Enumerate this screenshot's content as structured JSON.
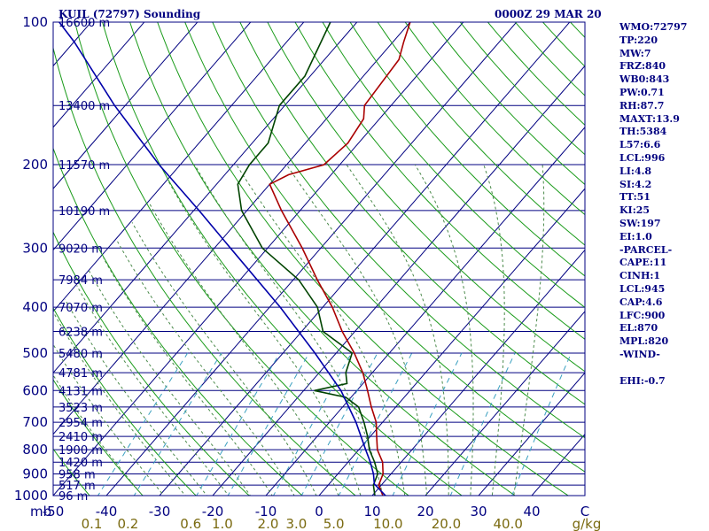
{
  "header": {
    "station": "KUIL (72797) Sounding",
    "time": "0000Z 29 MAR 20"
  },
  "stats": [
    "WMO:72797",
    "TP:220",
    "MW:7",
    "FRZ:840",
    "WB0:843",
    "PW:0.71",
    "RH:87.7",
    "MAXT:13.9",
    "TH:5384",
    "L57:6.6",
    "LCL:996",
    "LI:4.8",
    "SI:4.2",
    "TT:51",
    "KI:25",
    "SW:197",
    "EI:1.0",
    "-PARCEL-",
    "CAPE:11",
    "CINH:1",
    "LCL:945",
    "CAP:4.6",
    "LFC:900",
    "EL:870",
    "MPL:820",
    "-WIND-",
    "",
    "EHI:-0.7"
  ],
  "colors": {
    "frame": "#000080",
    "isobar": "#000080",
    "isotherm": "#000080",
    "dry_adiabat": "#1a9b1a",
    "moist_adiabat": "#4b8a4b",
    "mixing_ratio": "#3aa0c0",
    "temperature": "#aa0000",
    "dewpoint": "#004400",
    "parcel": "#0000aa"
  },
  "chart_data": {
    "type": "line",
    "title": "KUIL (72797) Sounding",
    "xlabel": "",
    "ylabel": "mb",
    "x_unit_label": "C",
    "mixing_unit_label": "g/kg",
    "p_range": [
      1000,
      100
    ],
    "t_range_at_1000mb": [
      -50,
      50
    ],
    "pressure_labels": [
      "100",
      "200",
      "300",
      "400",
      "500",
      "600",
      "700",
      "800",
      "900",
      "1000"
    ],
    "temp_ticks": [
      "-50",
      "-40",
      "-30",
      "-20",
      "-10",
      "0",
      "10",
      "20",
      "30",
      "40",
      "C"
    ],
    "mixing_ratio_ticks": [
      "0.1",
      "0.2",
      "0.6",
      "1.0",
      "2.0",
      "3.0",
      "5.0",
      "10.0",
      "20.0",
      "40.0"
    ],
    "height_labels": [
      {
        "p": 100,
        "label": "16600 m"
      },
      {
        "p": 150,
        "label": "13400 m"
      },
      {
        "p": 200,
        "label": "11570 m"
      },
      {
        "p": 250,
        "label": "10190 m"
      },
      {
        "p": 300,
        "label": "9020 m"
      },
      {
        "p": 350,
        "label": "7984 m"
      },
      {
        "p": 400,
        "label": "7070 m"
      },
      {
        "p": 450,
        "label": "6238 m"
      },
      {
        "p": 500,
        "label": "5480 m"
      },
      {
        "p": 550,
        "label": "4781 m"
      },
      {
        "p": 600,
        "label": "4131 m"
      },
      {
        "p": 650,
        "label": "3523 m"
      },
      {
        "p": 700,
        "label": "2954 m"
      },
      {
        "p": 750,
        "label": "2410 m"
      },
      {
        "p": 800,
        "label": "1900 m"
      },
      {
        "p": 850,
        "label": "1420 m"
      },
      {
        "p": 900,
        "label": "958 m"
      },
      {
        "p": 950,
        "label": "517 m"
      },
      {
        "p": 1000,
        "label": "96 m"
      }
    ],
    "series": [
      {
        "key": "temperature",
        "points": [
          [
            1000,
            12
          ],
          [
            950,
            9.5
          ],
          [
            900,
            8.5
          ],
          [
            850,
            6.5
          ],
          [
            800,
            3.5
          ],
          [
            750,
            1.2
          ],
          [
            700,
            -1.2
          ],
          [
            650,
            -4.6
          ],
          [
            600,
            -8
          ],
          [
            550,
            -11.8
          ],
          [
            500,
            -16.6
          ],
          [
            450,
            -22.4
          ],
          [
            400,
            -28.2
          ],
          [
            350,
            -35.5
          ],
          [
            300,
            -43.5
          ],
          [
            250,
            -53.5
          ],
          [
            220,
            -60
          ],
          [
            210,
            -58
          ],
          [
            200,
            -53
          ],
          [
            180,
            -52
          ],
          [
            160,
            -53
          ],
          [
            150,
            -55
          ],
          [
            120,
            -56
          ],
          [
            110,
            -58
          ],
          [
            100,
            -60
          ]
        ]
      },
      {
        "key": "dewpoint",
        "points": [
          [
            1000,
            10.5
          ],
          [
            950,
            8.5
          ],
          [
            900,
            7.5
          ],
          [
            850,
            5
          ],
          [
            800,
            2
          ],
          [
            750,
            -0.5
          ],
          [
            700,
            -3.5
          ],
          [
            650,
            -7
          ],
          [
            620,
            -11
          ],
          [
            600,
            -18
          ],
          [
            580,
            -13
          ],
          [
            550,
            -15
          ],
          [
            500,
            -17
          ],
          [
            450,
            -26
          ],
          [
            400,
            -31
          ],
          [
            350,
            -39
          ],
          [
            300,
            -51
          ],
          [
            250,
            -61
          ],
          [
            220,
            -66
          ],
          [
            200,
            -67
          ],
          [
            180,
            -67
          ],
          [
            150,
            -71
          ],
          [
            130,
            -71
          ],
          [
            100,
            -75
          ]
        ]
      },
      {
        "key": "parcel",
        "points": [
          [
            1000,
            12.5
          ],
          [
            945,
            8.5
          ],
          [
            900,
            6.7
          ],
          [
            850,
            4.2
          ],
          [
            800,
            1.3
          ],
          [
            700,
            -5
          ],
          [
            600,
            -13
          ],
          [
            500,
            -24
          ],
          [
            400,
            -38
          ],
          [
            300,
            -57
          ],
          [
            250,
            -69
          ],
          [
            200,
            -84
          ],
          [
            150,
            -102
          ],
          [
            110,
            -120
          ],
          [
            100,
            -126
          ]
        ]
      }
    ]
  }
}
